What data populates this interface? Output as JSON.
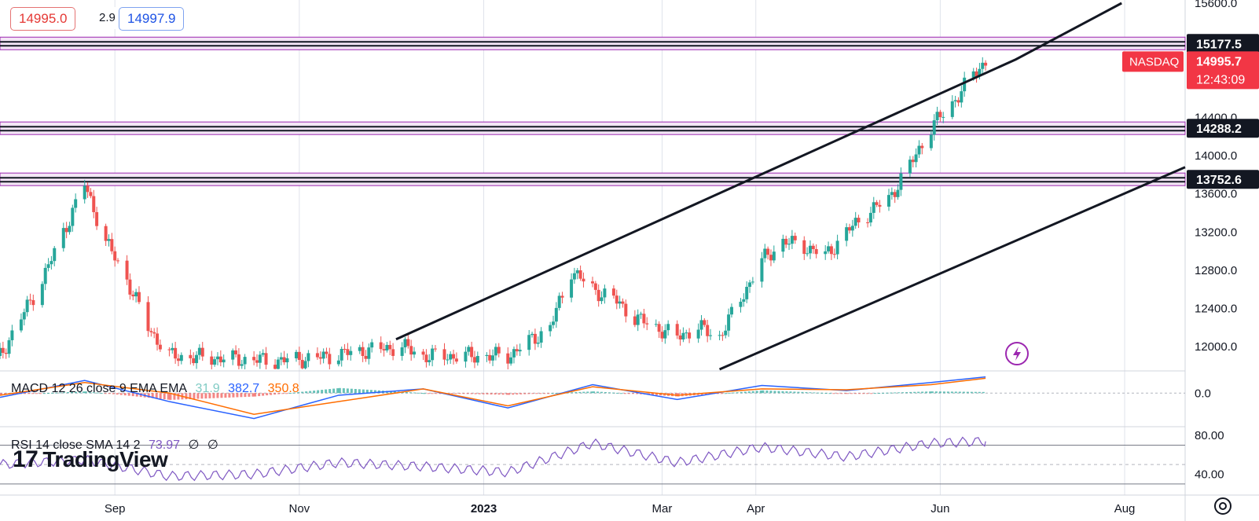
{
  "header": {
    "open_value": "14995.0",
    "spread": "2.9",
    "close_value": "14997.9"
  },
  "symbol": {
    "name": "NASDAQ",
    "last_price": "14995.7",
    "countdown": "12:43:09"
  },
  "price_axis": {
    "ticks": [
      "15600.0",
      "14400.0",
      "14000.0",
      "13600.0",
      "13200.0",
      "12800.0",
      "12400.0",
      "12000.0"
    ],
    "level_labels": [
      "15177.5",
      "14288.2",
      "13752.6"
    ]
  },
  "macd": {
    "label": "MACD 12 26 close 9 EMA EMA",
    "histogram": "31.9",
    "macd": "382.7",
    "signal": "350.8",
    "axis_tick": "0.0"
  },
  "rsi": {
    "label": "RSI 14 close SMA 14 2",
    "value": "73.97",
    "extra1": "∅",
    "extra2": "∅",
    "axis_ticks": [
      "80.00",
      "40.00"
    ]
  },
  "time_axis": {
    "labels": [
      "Sep",
      "Nov",
      "2023",
      "Mar",
      "Apr",
      "Jun",
      "Aug"
    ]
  },
  "branding": {
    "logo_mark": "17",
    "logo_text": "TradingView"
  },
  "icons": {
    "lightning": "lightning-icon",
    "settings": "settings-icon"
  },
  "colors": {
    "up": "#26a69a",
    "down": "#ef5350",
    "zone_fill": "#f3e5f5",
    "zone_border": "#9c27b0",
    "macd_line": "#2962ff",
    "signal_line": "#ff6d00",
    "rsi_line": "#7e57c2",
    "label_bg": "#131722",
    "last_price_bg": "#f23645"
  },
  "chart_data": {
    "type": "candlestick",
    "symbol": "NASDAQ",
    "x_range": [
      "2022-07-25",
      "2023-08-21"
    ],
    "y_range": [
      11760,
      15600
    ],
    "levels": [
      15177.5,
      14288.2,
      13752.6
    ],
    "channel": {
      "upper": [
        [
          "2022-12-03",
          12075
        ],
        [
          "2023-06-26",
          15010
        ],
        [
          "2023-07-31",
          15600
        ]
      ],
      "lower": [
        [
          "2023-03-20",
          11760
        ],
        [
          "2023-08-21",
          13880
        ]
      ]
    },
    "series": [
      {
        "name": "NASDAQ",
        "close_points": [
          [
            "2022-07-25",
            11900
          ],
          [
            "2022-08-01",
            12300
          ],
          [
            "2022-08-08",
            12700
          ],
          [
            "2022-08-15",
            13200
          ],
          [
            "2022-08-22",
            13700
          ],
          [
            "2022-08-29",
            13100
          ],
          [
            "2022-09-05",
            12700
          ],
          [
            "2022-09-12",
            12200
          ],
          [
            "2022-09-19",
            11900
          ],
          [
            "2022-10-24",
            11850
          ],
          [
            "2022-11-07",
            11880
          ],
          [
            "2022-11-21",
            11950
          ],
          [
            "2022-12-05",
            12000
          ],
          [
            "2022-12-12",
            11900
          ],
          [
            "2023-01-09",
            11900
          ],
          [
            "2023-01-23",
            12200
          ],
          [
            "2023-01-30",
            12800
          ],
          [
            "2023-02-06",
            12600
          ],
          [
            "2023-02-13",
            12500
          ],
          [
            "2023-02-20",
            12300
          ],
          [
            "2023-03-06",
            12100
          ],
          [
            "2023-03-13",
            12200
          ],
          [
            "2023-03-20",
            12100
          ],
          [
            "2023-03-27",
            12500
          ],
          [
            "2023-04-03",
            12900
          ],
          [
            "2023-04-10",
            13100
          ],
          [
            "2023-04-17",
            13050
          ],
          [
            "2023-04-24",
            12950
          ],
          [
            "2023-05-01",
            13200
          ],
          [
            "2023-05-08",
            13400
          ],
          [
            "2023-05-15",
            13550
          ],
          [
            "2023-05-22",
            13900
          ],
          [
            "2023-05-29",
            14300
          ],
          [
            "2023-06-05",
            14550
          ],
          [
            "2023-06-12",
            14850
          ],
          [
            "2023-06-16",
            14995.7
          ]
        ]
      }
    ],
    "macd_series": {
      "x": [
        "2022-07-25",
        "2022-08-22",
        "2022-09-19",
        "2022-10-17",
        "2022-11-14",
        "2022-12-12",
        "2023-01-09",
        "2023-02-06",
        "2023-03-06",
        "2023-04-03",
        "2023-05-01",
        "2023-05-29",
        "2023-06-16"
      ],
      "macd": [
        -100,
        300,
        -200,
        -600,
        -50,
        100,
        -350,
        200,
        -150,
        180,
        60,
        250,
        382.7
      ],
      "signal": [
        -50,
        250,
        0,
        -500,
        -200,
        100,
        -300,
        150,
        -50,
        100,
        80,
        200,
        350.8
      ]
    },
    "rsi_series": {
      "x": [
        "2022-07-25",
        "2022-08-22",
        "2022-09-19",
        "2022-10-17",
        "2022-11-14",
        "2022-12-12",
        "2023-01-09",
        "2023-02-06",
        "2023-03-06",
        "2023-04-03",
        "2023-05-01",
        "2023-05-29",
        "2023-06-16"
      ],
      "values": [
        50,
        55,
        38,
        40,
        52,
        48,
        42,
        72,
        52,
        68,
        58,
        72,
        73.97
      ]
    }
  }
}
